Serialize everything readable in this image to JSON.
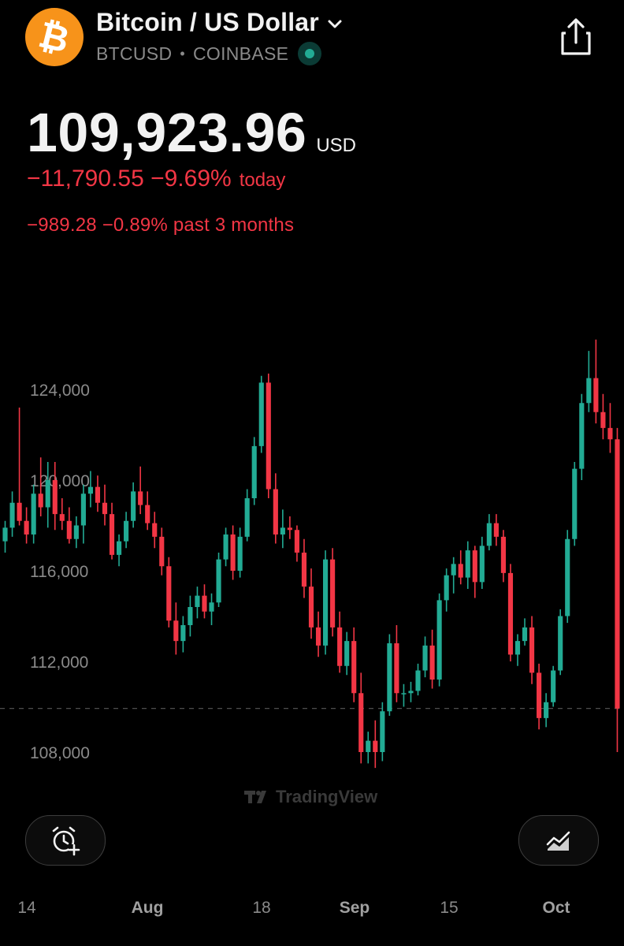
{
  "header": {
    "title": "Bitcoin / US Dollar",
    "symbol": "BTCUSD",
    "exchange": "COINBASE",
    "logo_glyph": "₿",
    "logo_color": "#f7931a",
    "status_color": "#22ab94"
  },
  "price": {
    "value": "109,923.96",
    "currency": "USD",
    "change_today": "−11,790.55 −9.69%",
    "change_today_suffix": "today",
    "change_period": "−989.28 −0.89% past 3 months"
  },
  "watermark": "TradingView",
  "buttons": {
    "alert_icon": "alarm-plus-icon",
    "chart_style_icon": "chart-style-icon",
    "share_icon": "share-icon"
  },
  "colors": {
    "up": "#22ab94",
    "down": "#f23645",
    "negative_text": "#f23645"
  },
  "chart_data": {
    "type": "candlestick",
    "yticks": [
      124000,
      120000,
      116000,
      112000,
      108000
    ],
    "ytick_labels": [
      "124,000",
      "120,000",
      "116,000",
      "112,000",
      "108,000"
    ],
    "xtick_labels": [
      {
        "label": "14",
        "bold": false
      },
      {
        "label": "Aug",
        "bold": true
      },
      {
        "label": "18",
        "bold": false
      },
      {
        "label": "Sep",
        "bold": true
      },
      {
        "label": "15",
        "bold": false
      },
      {
        "label": "Oct",
        "bold": true
      }
    ],
    "current_price_line": 109924,
    "candles": [
      [
        117300,
        118200,
        116800,
        117900
      ],
      [
        117900,
        119500,
        117500,
        119000
      ],
      [
        119000,
        123200,
        118000,
        118200
      ],
      [
        118200,
        118800,
        117200,
        117600
      ],
      [
        117600,
        119800,
        117200,
        119400
      ],
      [
        119400,
        121000,
        118400,
        118800
      ],
      [
        118800,
        120800,
        117900,
        120000
      ],
      [
        120000,
        120800,
        117800,
        118500
      ],
      [
        118500,
        119200,
        117800,
        118200
      ],
      [
        118200,
        118800,
        117200,
        117400
      ],
      [
        117400,
        118400,
        117000,
        118000
      ],
      [
        118000,
        119800,
        117200,
        119400
      ],
      [
        119400,
        120400,
        118800,
        119700
      ],
      [
        119700,
        120200,
        118600,
        119000
      ],
      [
        119000,
        119800,
        118000,
        118500
      ],
      [
        118500,
        119000,
        116500,
        116700
      ],
      [
        116700,
        117600,
        116200,
        117300
      ],
      [
        117300,
        118600,
        117000,
        118200
      ],
      [
        118200,
        119900,
        117900,
        119500
      ],
      [
        119500,
        120600,
        118500,
        118900
      ],
      [
        118900,
        119500,
        117800,
        118100
      ],
      [
        118100,
        118600,
        117000,
        117500
      ],
      [
        117500,
        117900,
        115800,
        116200
      ],
      [
        116200,
        116600,
        113500,
        113800
      ],
      [
        113800,
        114600,
        112300,
        112900
      ],
      [
        112900,
        114000,
        112400,
        113600
      ],
      [
        113600,
        114900,
        113100,
        114400
      ],
      [
        114400,
        115300,
        113900,
        114900
      ],
      [
        114900,
        115400,
        113900,
        114200
      ],
      [
        114200,
        115000,
        113600,
        114600
      ],
      [
        114600,
        116800,
        114400,
        116500
      ],
      [
        116500,
        117900,
        116200,
        117600
      ],
      [
        117600,
        118000,
        115600,
        116000
      ],
      [
        116000,
        117900,
        115700,
        117500
      ],
      [
        117500,
        119600,
        117300,
        119200
      ],
      [
        119200,
        121900,
        118900,
        121500
      ],
      [
        121500,
        124600,
        121200,
        124300
      ],
      [
        124300,
        124700,
        119200,
        119600
      ],
      [
        119600,
        120300,
        117200,
        117600
      ],
      [
        117600,
        118700,
        117000,
        117900
      ],
      [
        117900,
        118400,
        117400,
        117800
      ],
      [
        117800,
        118000,
        116400,
        116800
      ],
      [
        116800,
        117400,
        114800,
        115300
      ],
      [
        115300,
        116100,
        113000,
        113500
      ],
      [
        113500,
        114200,
        112200,
        112700
      ],
      [
        112700,
        116900,
        112300,
        116500
      ],
      [
        116500,
        117000,
        113100,
        113500
      ],
      [
        113500,
        114200,
        111500,
        111800
      ],
      [
        111800,
        113300,
        111400,
        112900
      ],
      [
        112900,
        113500,
        110200,
        110600
      ],
      [
        110600,
        111500,
        107500,
        108000
      ],
      [
        108000,
        108900,
        107500,
        108500
      ],
      [
        108500,
        109400,
        107300,
        108000
      ],
      [
        108000,
        110200,
        107600,
        109800
      ],
      [
        109800,
        113200,
        109600,
        112800
      ],
      [
        112800,
        113600,
        110200,
        110600
      ],
      [
        110600,
        111000,
        110000,
        110600
      ],
      [
        110600,
        111100,
        110200,
        110700
      ],
      [
        110700,
        111900,
        110500,
        111600
      ],
      [
        111600,
        113100,
        111300,
        112700
      ],
      [
        112700,
        113400,
        110800,
        111200
      ],
      [
        111200,
        115000,
        110900,
        114700
      ],
      [
        114700,
        116100,
        114200,
        115800
      ],
      [
        115800,
        116600,
        115000,
        116300
      ],
      [
        116300,
        116900,
        115400,
        115700
      ],
      [
        115700,
        117300,
        115200,
        116900
      ],
      [
        116900,
        117100,
        114800,
        115500
      ],
      [
        115500,
        117500,
        115200,
        117100
      ],
      [
        117100,
        118500,
        116900,
        118100
      ],
      [
        118100,
        118500,
        117100,
        117500
      ],
      [
        117500,
        117800,
        115500,
        115900
      ],
      [
        115900,
        116300,
        112000,
        112300
      ],
      [
        112300,
        113200,
        111800,
        112900
      ],
      [
        112900,
        113900,
        112700,
        113500
      ],
      [
        113500,
        114000,
        111000,
        111500
      ],
      [
        111500,
        111900,
        109000,
        109500
      ],
      [
        109500,
        110600,
        109100,
        110200
      ],
      [
        110200,
        111800,
        110000,
        111600
      ],
      [
        111600,
        114300,
        111400,
        114000
      ],
      [
        114000,
        117800,
        113700,
        117400
      ],
      [
        117400,
        120800,
        117100,
        120500
      ],
      [
        120500,
        123800,
        120000,
        123400
      ],
      [
        123400,
        125700,
        123000,
        124500
      ],
      [
        124500,
        126200,
        122500,
        123000
      ],
      [
        123000,
        123800,
        121800,
        122300
      ],
      [
        122300,
        123400,
        121200,
        121800
      ],
      [
        121800,
        122300,
        108000,
        109924
      ]
    ]
  }
}
